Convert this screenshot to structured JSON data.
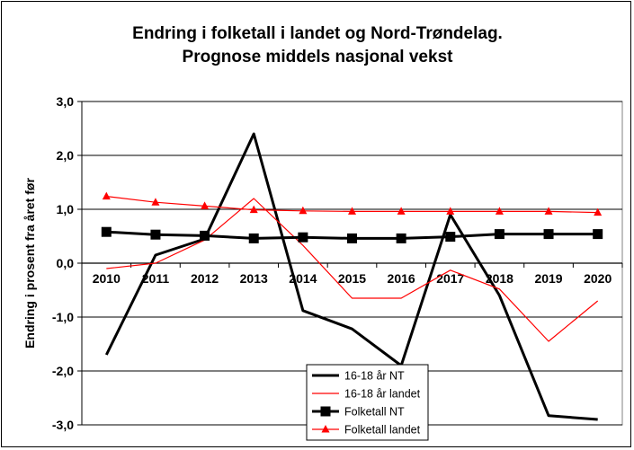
{
  "chart_data": {
    "type": "line",
    "title_lines": [
      "Endring i folketall i landet og Nord-Trøndelag.",
      "Prognose middels nasjonal vekst"
    ],
    "ylabel": "Endring i prosent fra året før",
    "xlabel": "",
    "categories": [
      "2010",
      "2011",
      "2012",
      "2013",
      "2014",
      "2015",
      "2016",
      "2017",
      "2018",
      "2019",
      "2020"
    ],
    "yticks": [
      "3,0",
      "2,0",
      "1,0",
      "0,0",
      "-1,0",
      "-2,0",
      "-3,0"
    ],
    "ylim": [
      -3,
      3
    ],
    "grid": true,
    "legend_position": "bottom-right",
    "series": [
      {
        "name": "16-18 år NT",
        "color": "#000000",
        "style": "thick",
        "marker": "none",
        "values": [
          -1.7,
          0.15,
          0.45,
          2.4,
          -0.88,
          -1.22,
          -1.9,
          0.9,
          -0.6,
          -2.83,
          -2.9
        ]
      },
      {
        "name": "16-18 år landet",
        "color": "#ff0000",
        "style": "thin",
        "marker": "none",
        "values": [
          -0.1,
          0.0,
          0.43,
          1.2,
          0.33,
          -0.65,
          -0.65,
          -0.13,
          -0.48,
          -1.45,
          -0.7
        ]
      },
      {
        "name": "Folketall NT",
        "color": "#000000",
        "style": "thick",
        "marker": "square",
        "values": [
          0.58,
          0.53,
          0.51,
          0.46,
          0.48,
          0.46,
          0.46,
          0.49,
          0.54,
          0.54,
          0.54
        ]
      },
      {
        "name": "Folketall landet",
        "color": "#ff0000",
        "style": "thin",
        "marker": "triangle",
        "values": [
          1.24,
          1.13,
          1.06,
          0.99,
          0.97,
          0.96,
          0.96,
          0.96,
          0.96,
          0.96,
          0.94
        ]
      }
    ]
  }
}
